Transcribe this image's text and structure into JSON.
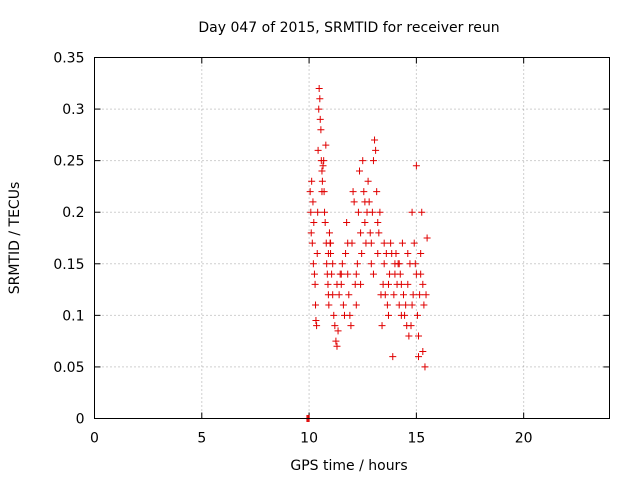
{
  "chart_data": {
    "type": "scatter",
    "title": "Day 047 of 2015, SRMTID for receiver reun",
    "xlabel": "GPS time / hours",
    "ylabel": "SRMTID / TECUs",
    "xlim": [
      0,
      24
    ],
    "ylim": [
      0,
      0.35
    ],
    "x_ticks": [
      "0",
      "5",
      "10",
      "15",
      "20"
    ],
    "y_ticks": [
      "0",
      "0.05",
      "0.1",
      "0.15",
      "0.2",
      "0.25",
      "0.3",
      "0.35"
    ],
    "grid": true,
    "marker": "+",
    "color": "#e00000",
    "series": [
      {
        "points": [
          [
            9.9,
            0.0
          ],
          [
            9.95,
            0.0
          ],
          [
            10.0,
            0.0
          ],
          [
            10.05,
            0.22
          ],
          [
            10.08,
            0.2
          ],
          [
            10.1,
            0.18
          ],
          [
            10.12,
            0.23
          ],
          [
            10.15,
            0.17
          ],
          [
            10.18,
            0.21
          ],
          [
            10.2,
            0.15
          ],
          [
            10.22,
            0.19
          ],
          [
            10.25,
            0.14
          ],
          [
            10.28,
            0.13
          ],
          [
            10.3,
            0.11
          ],
          [
            10.32,
            0.095
          ],
          [
            10.35,
            0.09
          ],
          [
            10.38,
            0.16
          ],
          [
            10.4,
            0.2
          ],
          [
            10.42,
            0.26
          ],
          [
            10.45,
            0.3
          ],
          [
            10.47,
            0.32
          ],
          [
            10.5,
            0.31
          ],
          [
            10.52,
            0.29
          ],
          [
            10.55,
            0.28
          ],
          [
            10.57,
            0.25
          ],
          [
            10.6,
            0.24
          ],
          [
            10.62,
            0.23
          ],
          [
            10.65,
            0.245
          ],
          [
            10.68,
            0.25
          ],
          [
            10.7,
            0.22
          ],
          [
            10.72,
            0.2
          ],
          [
            10.75,
            0.19
          ],
          [
            10.78,
            0.265
          ],
          [
            10.8,
            0.17
          ],
          [
            10.82,
            0.15
          ],
          [
            10.85,
            0.14
          ],
          [
            10.88,
            0.13
          ],
          [
            10.9,
            0.12
          ],
          [
            10.92,
            0.11
          ],
          [
            10.95,
            0.18
          ],
          [
            10.98,
            0.17
          ],
          [
            11.0,
            0.16
          ],
          [
            11.05,
            0.14
          ],
          [
            11.1,
            0.12
          ],
          [
            11.15,
            0.1
          ],
          [
            11.2,
            0.09
          ],
          [
            11.25,
            0.075
          ],
          [
            11.3,
            0.07
          ],
          [
            11.35,
            0.085
          ],
          [
            11.4,
            0.12
          ],
          [
            11.45,
            0.14
          ],
          [
            11.5,
            0.13
          ],
          [
            11.55,
            0.15
          ],
          [
            11.6,
            0.11
          ],
          [
            11.65,
            0.1
          ],
          [
            11.7,
            0.16
          ],
          [
            11.75,
            0.19
          ],
          [
            11.8,
            0.14
          ],
          [
            11.85,
            0.12
          ],
          [
            11.9,
            0.1
          ],
          [
            11.95,
            0.09
          ],
          [
            12.0,
            0.17
          ],
          [
            12.05,
            0.22
          ],
          [
            12.1,
            0.21
          ],
          [
            12.15,
            0.13
          ],
          [
            12.2,
            0.11
          ],
          [
            12.25,
            0.15
          ],
          [
            12.3,
            0.2
          ],
          [
            12.35,
            0.24
          ],
          [
            12.4,
            0.18
          ],
          [
            12.45,
            0.16
          ],
          [
            12.5,
            0.25
          ],
          [
            12.55,
            0.22
          ],
          [
            12.6,
            0.19
          ],
          [
            12.65,
            0.17
          ],
          [
            12.7,
            0.2
          ],
          [
            12.75,
            0.23
          ],
          [
            12.8,
            0.21
          ],
          [
            12.85,
            0.18
          ],
          [
            12.9,
            0.15
          ],
          [
            12.95,
            0.2
          ],
          [
            13.0,
            0.25
          ],
          [
            13.05,
            0.27
          ],
          [
            13.1,
            0.26
          ],
          [
            13.15,
            0.22
          ],
          [
            13.2,
            0.19
          ],
          [
            13.25,
            0.18
          ],
          [
            13.3,
            0.2
          ],
          [
            13.35,
            0.12
          ],
          [
            13.4,
            0.09
          ],
          [
            13.45,
            0.13
          ],
          [
            13.5,
            0.15
          ],
          [
            13.55,
            0.12
          ],
          [
            13.6,
            0.16
          ],
          [
            13.65,
            0.11
          ],
          [
            13.7,
            0.13
          ],
          [
            13.75,
            0.14
          ],
          [
            13.8,
            0.17
          ],
          [
            13.85,
            0.16
          ],
          [
            13.9,
            0.06
          ],
          [
            13.95,
            0.12
          ],
          [
            14.0,
            0.14
          ],
          [
            14.05,
            0.16
          ],
          [
            14.1,
            0.13
          ],
          [
            14.15,
            0.15
          ],
          [
            14.2,
            0.11
          ],
          [
            14.25,
            0.14
          ],
          [
            14.3,
            0.13
          ],
          [
            14.35,
            0.17
          ],
          [
            14.4,
            0.12
          ],
          [
            14.45,
            0.1
          ],
          [
            14.5,
            0.11
          ],
          [
            14.55,
            0.09
          ],
          [
            14.6,
            0.13
          ],
          [
            14.65,
            0.08
          ],
          [
            14.7,
            0.15
          ],
          [
            14.75,
            0.09
          ],
          [
            14.8,
            0.2
          ],
          [
            14.85,
            0.12
          ],
          [
            14.9,
            0.17
          ],
          [
            14.95,
            0.15
          ],
          [
            15.0,
            0.245
          ],
          [
            15.05,
            0.1
          ],
          [
            15.1,
            0.06
          ],
          [
            15.15,
            0.12
          ],
          [
            15.2,
            0.14
          ],
          [
            15.25,
            0.2
          ],
          [
            15.3,
            0.13
          ],
          [
            15.35,
            0.11
          ],
          [
            15.4,
            0.05
          ],
          [
            15.45,
            0.12
          ],
          [
            15.5,
            0.175
          ],
          [
            10.6,
            0.22
          ],
          [
            11.0,
            0.17
          ],
          [
            11.5,
            0.14
          ],
          [
            12.2,
            0.14
          ],
          [
            12.6,
            0.21
          ],
          [
            13.2,
            0.16
          ],
          [
            13.7,
            0.1
          ],
          [
            14.2,
            0.15
          ],
          [
            14.6,
            0.16
          ],
          [
            15.2,
            0.16
          ],
          [
            15.3,
            0.065
          ],
          [
            14.8,
            0.11
          ],
          [
            12.9,
            0.17
          ],
          [
            11.8,
            0.17
          ],
          [
            12.4,
            0.13
          ],
          [
            13.0,
            0.14
          ],
          [
            14.0,
            0.15
          ],
          [
            15.0,
            0.14
          ],
          [
            11.3,
            0.13
          ],
          [
            11.1,
            0.15
          ],
          [
            10.9,
            0.16
          ],
          [
            13.5,
            0.17
          ],
          [
            14.3,
            0.1
          ],
          [
            15.1,
            0.08
          ]
        ]
      }
    ]
  }
}
